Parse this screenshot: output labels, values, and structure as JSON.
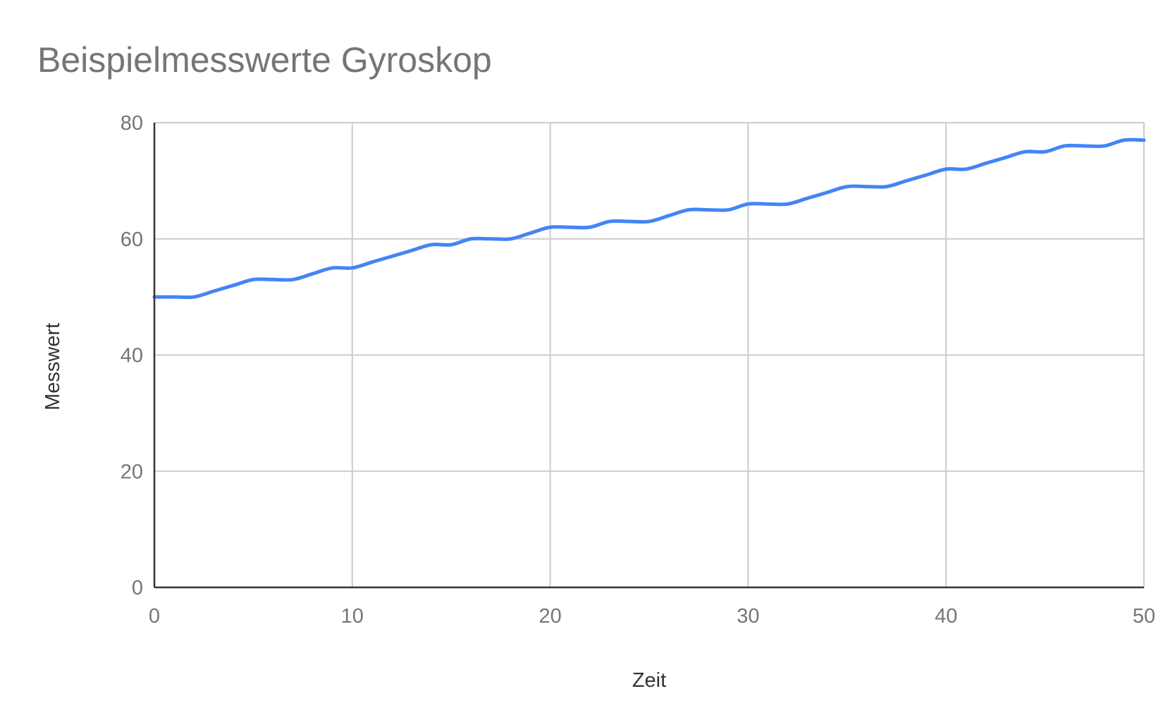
{
  "chart_data": {
    "type": "line",
    "title": "Beispielmesswerte Gyroskop",
    "xlabel": "Zeit",
    "ylabel": "Messwert",
    "xlim": [
      0,
      50
    ],
    "ylim": [
      0,
      80
    ],
    "xticks": [
      "0",
      "10",
      "20",
      "30",
      "40",
      "50"
    ],
    "yticks": [
      "0",
      "20",
      "40",
      "60",
      "80"
    ],
    "grid": true,
    "legend": "none",
    "line_color": "#4285f4",
    "x": [
      0,
      1,
      2,
      3,
      4,
      5,
      6,
      7,
      8,
      9,
      10,
      11,
      12,
      13,
      14,
      15,
      16,
      17,
      18,
      19,
      20,
      21,
      22,
      23,
      24,
      25,
      26,
      27,
      28,
      29,
      30,
      31,
      32,
      33,
      34,
      35,
      36,
      37,
      38,
      39,
      40,
      41,
      42,
      43,
      44,
      45,
      46,
      47,
      48,
      49,
      50
    ],
    "series": [
      {
        "values": [
          50,
          50,
          50,
          51,
          52,
          53,
          53,
          53,
          54,
          55,
          55,
          56,
          57,
          58,
          59,
          59,
          60,
          60,
          60,
          61,
          62,
          62,
          62,
          63,
          63,
          63,
          64,
          65,
          65,
          65,
          66,
          66,
          66,
          67,
          68,
          69,
          69,
          69,
          70,
          71,
          72,
          72,
          73,
          74,
          75,
          75,
          76,
          76,
          76,
          77,
          77
        ]
      }
    ]
  }
}
